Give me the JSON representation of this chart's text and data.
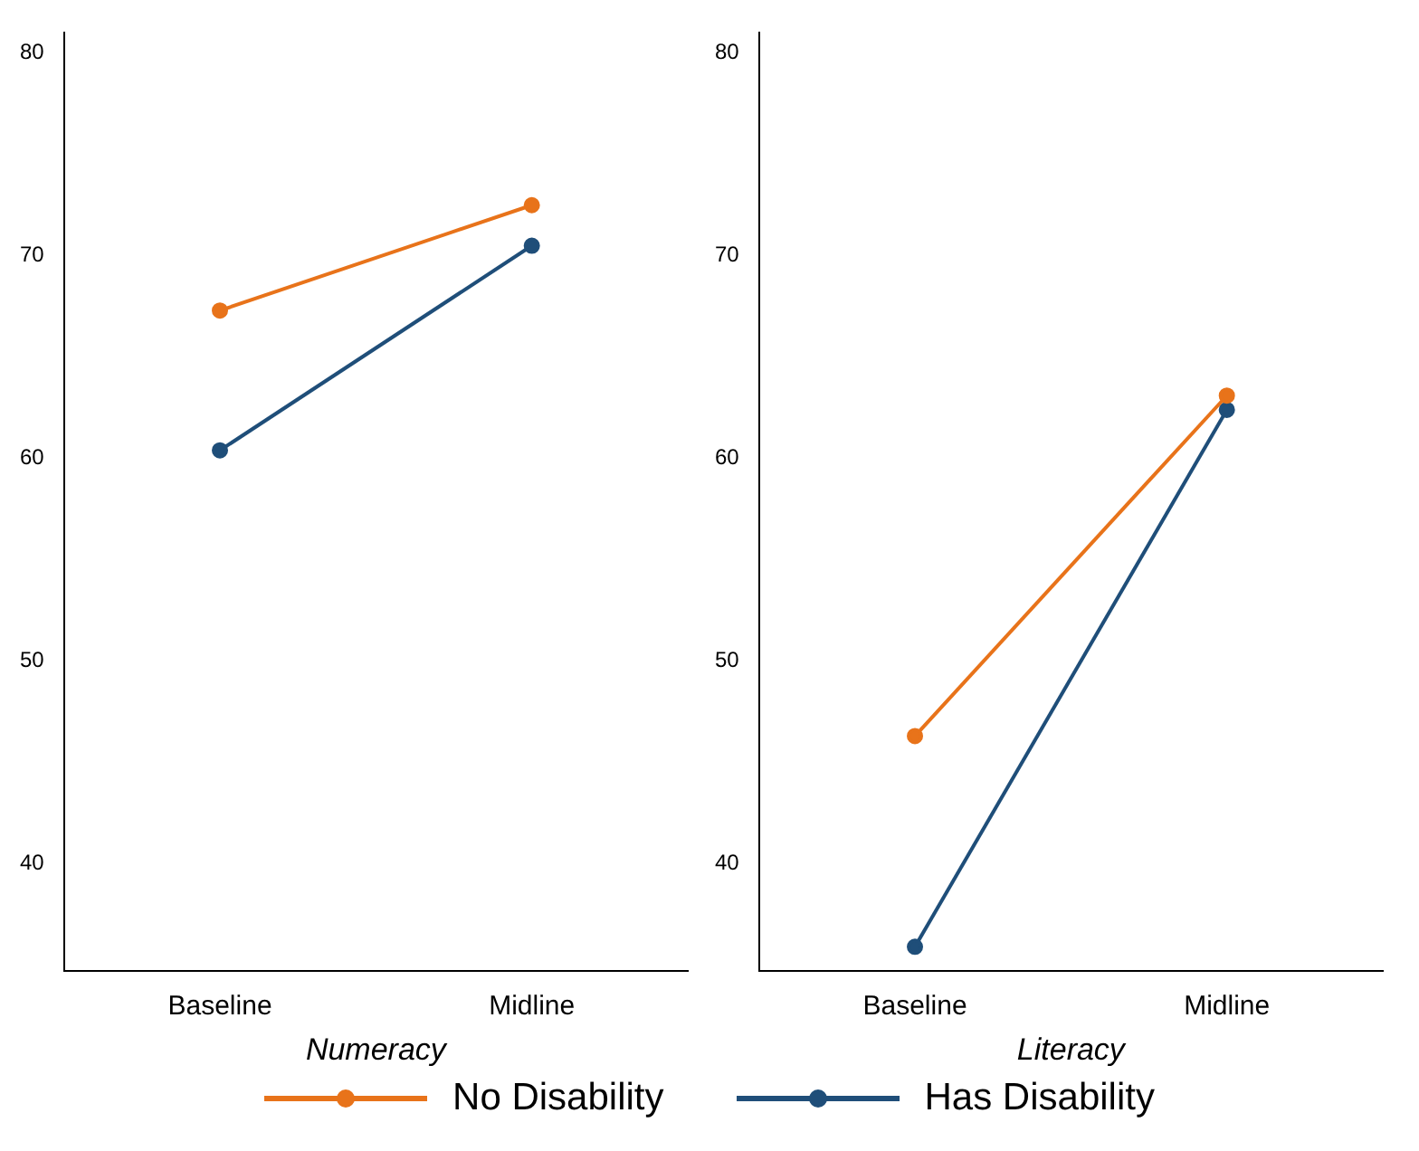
{
  "chart_data": [
    {
      "type": "line",
      "xlabel": "Numeracy",
      "categories": [
        "Baseline",
        "Midline"
      ],
      "series": [
        {
          "name": "No Disability",
          "color": "#e8731a",
          "values": [
            67.3,
            72.5
          ]
        },
        {
          "name": "Has Disability",
          "color": "#1f4e79",
          "values": [
            60.4,
            70.5
          ]
        }
      ],
      "ylim": [
        34.7,
        81
      ],
      "yticks": [
        40,
        50,
        60,
        70,
        80
      ],
      "grid": false,
      "legend": "bottom",
      "marker": "circle"
    },
    {
      "type": "line",
      "xlabel": "Literacy",
      "categories": [
        "Baseline",
        "Midline"
      ],
      "series": [
        {
          "color": "#e8731a",
          "values": [
            46.3,
            63.1
          ]
        },
        {
          "color": "#1f4e79",
          "values": [
            35.9,
            62.4
          ]
        }
      ],
      "ylim": [
        34.7,
        81
      ],
      "yticks": [
        40,
        50,
        60,
        70,
        80
      ],
      "grid": false,
      "marker": "circle"
    }
  ]
}
